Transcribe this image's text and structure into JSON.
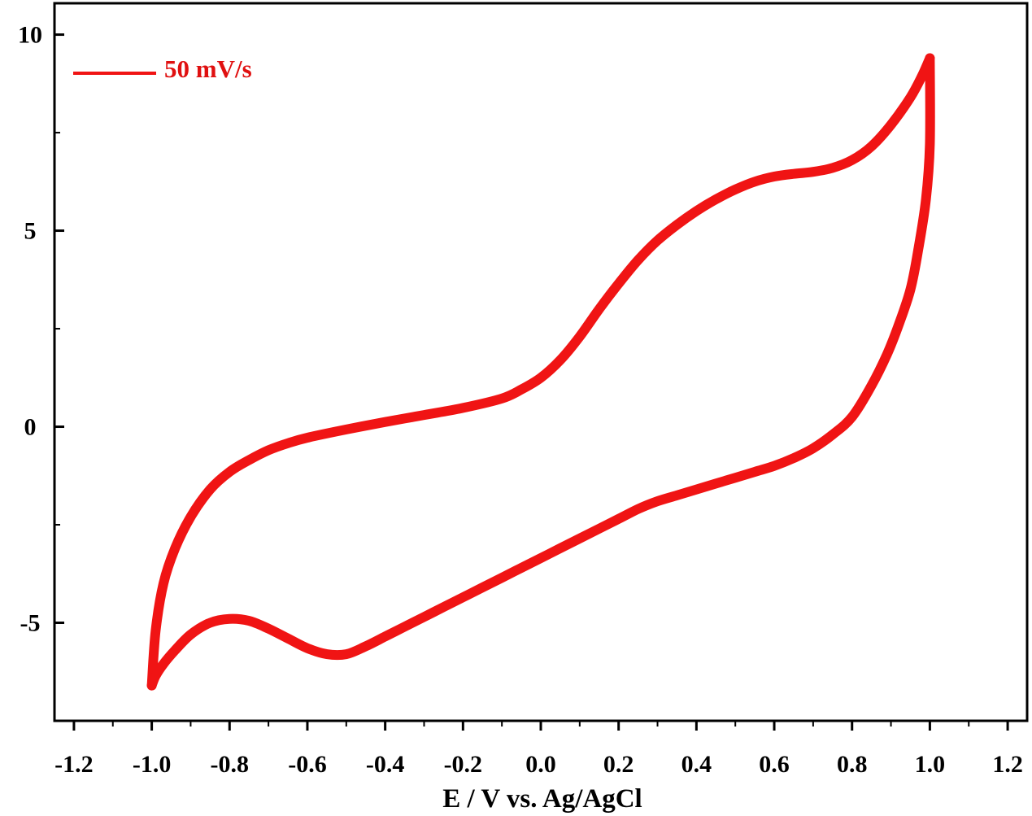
{
  "chart_data": {
    "type": "line",
    "title": "",
    "xlabel": "E / V vs. Ag/AgCl",
    "ylabel": "",
    "xlim": [
      -1.25,
      1.25
    ],
    "ylim": [
      -7.5,
      10.8
    ],
    "x_ticks": [
      -1.2,
      -1.0,
      -0.8,
      -0.6,
      -0.4,
      -0.2,
      0.0,
      0.2,
      0.4,
      0.6,
      0.8,
      1.0,
      1.2
    ],
    "x_tick_labels": [
      "-1.2",
      "-1.0",
      "-0.8",
      "-0.6",
      "-0.4",
      "-0.2",
      "0.0",
      "0.2",
      "0.4",
      "0.6",
      "0.8",
      "1.0",
      "1.2"
    ],
    "y_ticks": [
      -5,
      0,
      5,
      10
    ],
    "y_tick_labels": [
      "-5",
      "0",
      "5",
      "10"
    ],
    "y_minor_ticks": [
      -7.5,
      -2.5,
      2.5,
      7.5
    ],
    "grid": false,
    "legend": {
      "position": "top-left",
      "entries": [
        "50 mV/s"
      ]
    },
    "colors": {
      "series": "#f01414",
      "axes": "#000000"
    },
    "series": [
      {
        "name": "50 mV/s",
        "forward_scan": {
          "x": [
            -1.0,
            -0.99,
            -0.97,
            -0.94,
            -0.9,
            -0.85,
            -0.8,
            -0.75,
            -0.7,
            -0.65,
            -0.6,
            -0.5,
            -0.4,
            -0.3,
            -0.2,
            -0.1,
            -0.05,
            0.0,
            0.05,
            0.1,
            0.15,
            0.2,
            0.25,
            0.3,
            0.35,
            0.4,
            0.45,
            0.5,
            0.55,
            0.6,
            0.65,
            0.7,
            0.75,
            0.8,
            0.85,
            0.9,
            0.95,
            0.98,
            1.0
          ],
          "y": [
            -6.6,
            -5.2,
            -4.0,
            -3.1,
            -2.3,
            -1.6,
            -1.15,
            -0.85,
            -0.6,
            -0.42,
            -0.28,
            -0.07,
            0.12,
            0.3,
            0.48,
            0.72,
            0.95,
            1.25,
            1.7,
            2.3,
            3.0,
            3.65,
            4.25,
            4.75,
            5.15,
            5.5,
            5.8,
            6.05,
            6.25,
            6.38,
            6.45,
            6.5,
            6.6,
            6.8,
            7.15,
            7.7,
            8.4,
            8.95,
            9.4
          ]
        },
        "reverse_scan": {
          "x": [
            1.0,
            1.0,
            0.99,
            0.97,
            0.95,
            0.92,
            0.89,
            0.85,
            0.8,
            0.75,
            0.7,
            0.65,
            0.6,
            0.55,
            0.5,
            0.45,
            0.4,
            0.35,
            0.3,
            0.25,
            0.2,
            0.15,
            0.1,
            0.05,
            0.0,
            -0.05,
            -0.1,
            -0.15,
            -0.2,
            -0.25,
            -0.3,
            -0.35,
            -0.4,
            -0.45,
            -0.5,
            -0.55,
            -0.6,
            -0.65,
            -0.7,
            -0.75,
            -0.8,
            -0.85,
            -0.9,
            -0.94,
            -0.97,
            -0.99,
            -1.0
          ],
          "y": [
            9.4,
            7.2,
            5.8,
            4.5,
            3.5,
            2.6,
            1.85,
            1.05,
            0.25,
            -0.2,
            -0.55,
            -0.8,
            -1.0,
            -1.15,
            -1.3,
            -1.45,
            -1.6,
            -1.75,
            -1.9,
            -2.1,
            -2.35,
            -2.6,
            -2.85,
            -3.1,
            -3.35,
            -3.6,
            -3.85,
            -4.1,
            -4.35,
            -4.6,
            -4.85,
            -5.1,
            -5.35,
            -5.6,
            -5.8,
            -5.8,
            -5.65,
            -5.4,
            -5.15,
            -4.95,
            -4.9,
            -5.0,
            -5.3,
            -5.7,
            -6.05,
            -6.35,
            -6.6
          ]
        }
      }
    ]
  }
}
